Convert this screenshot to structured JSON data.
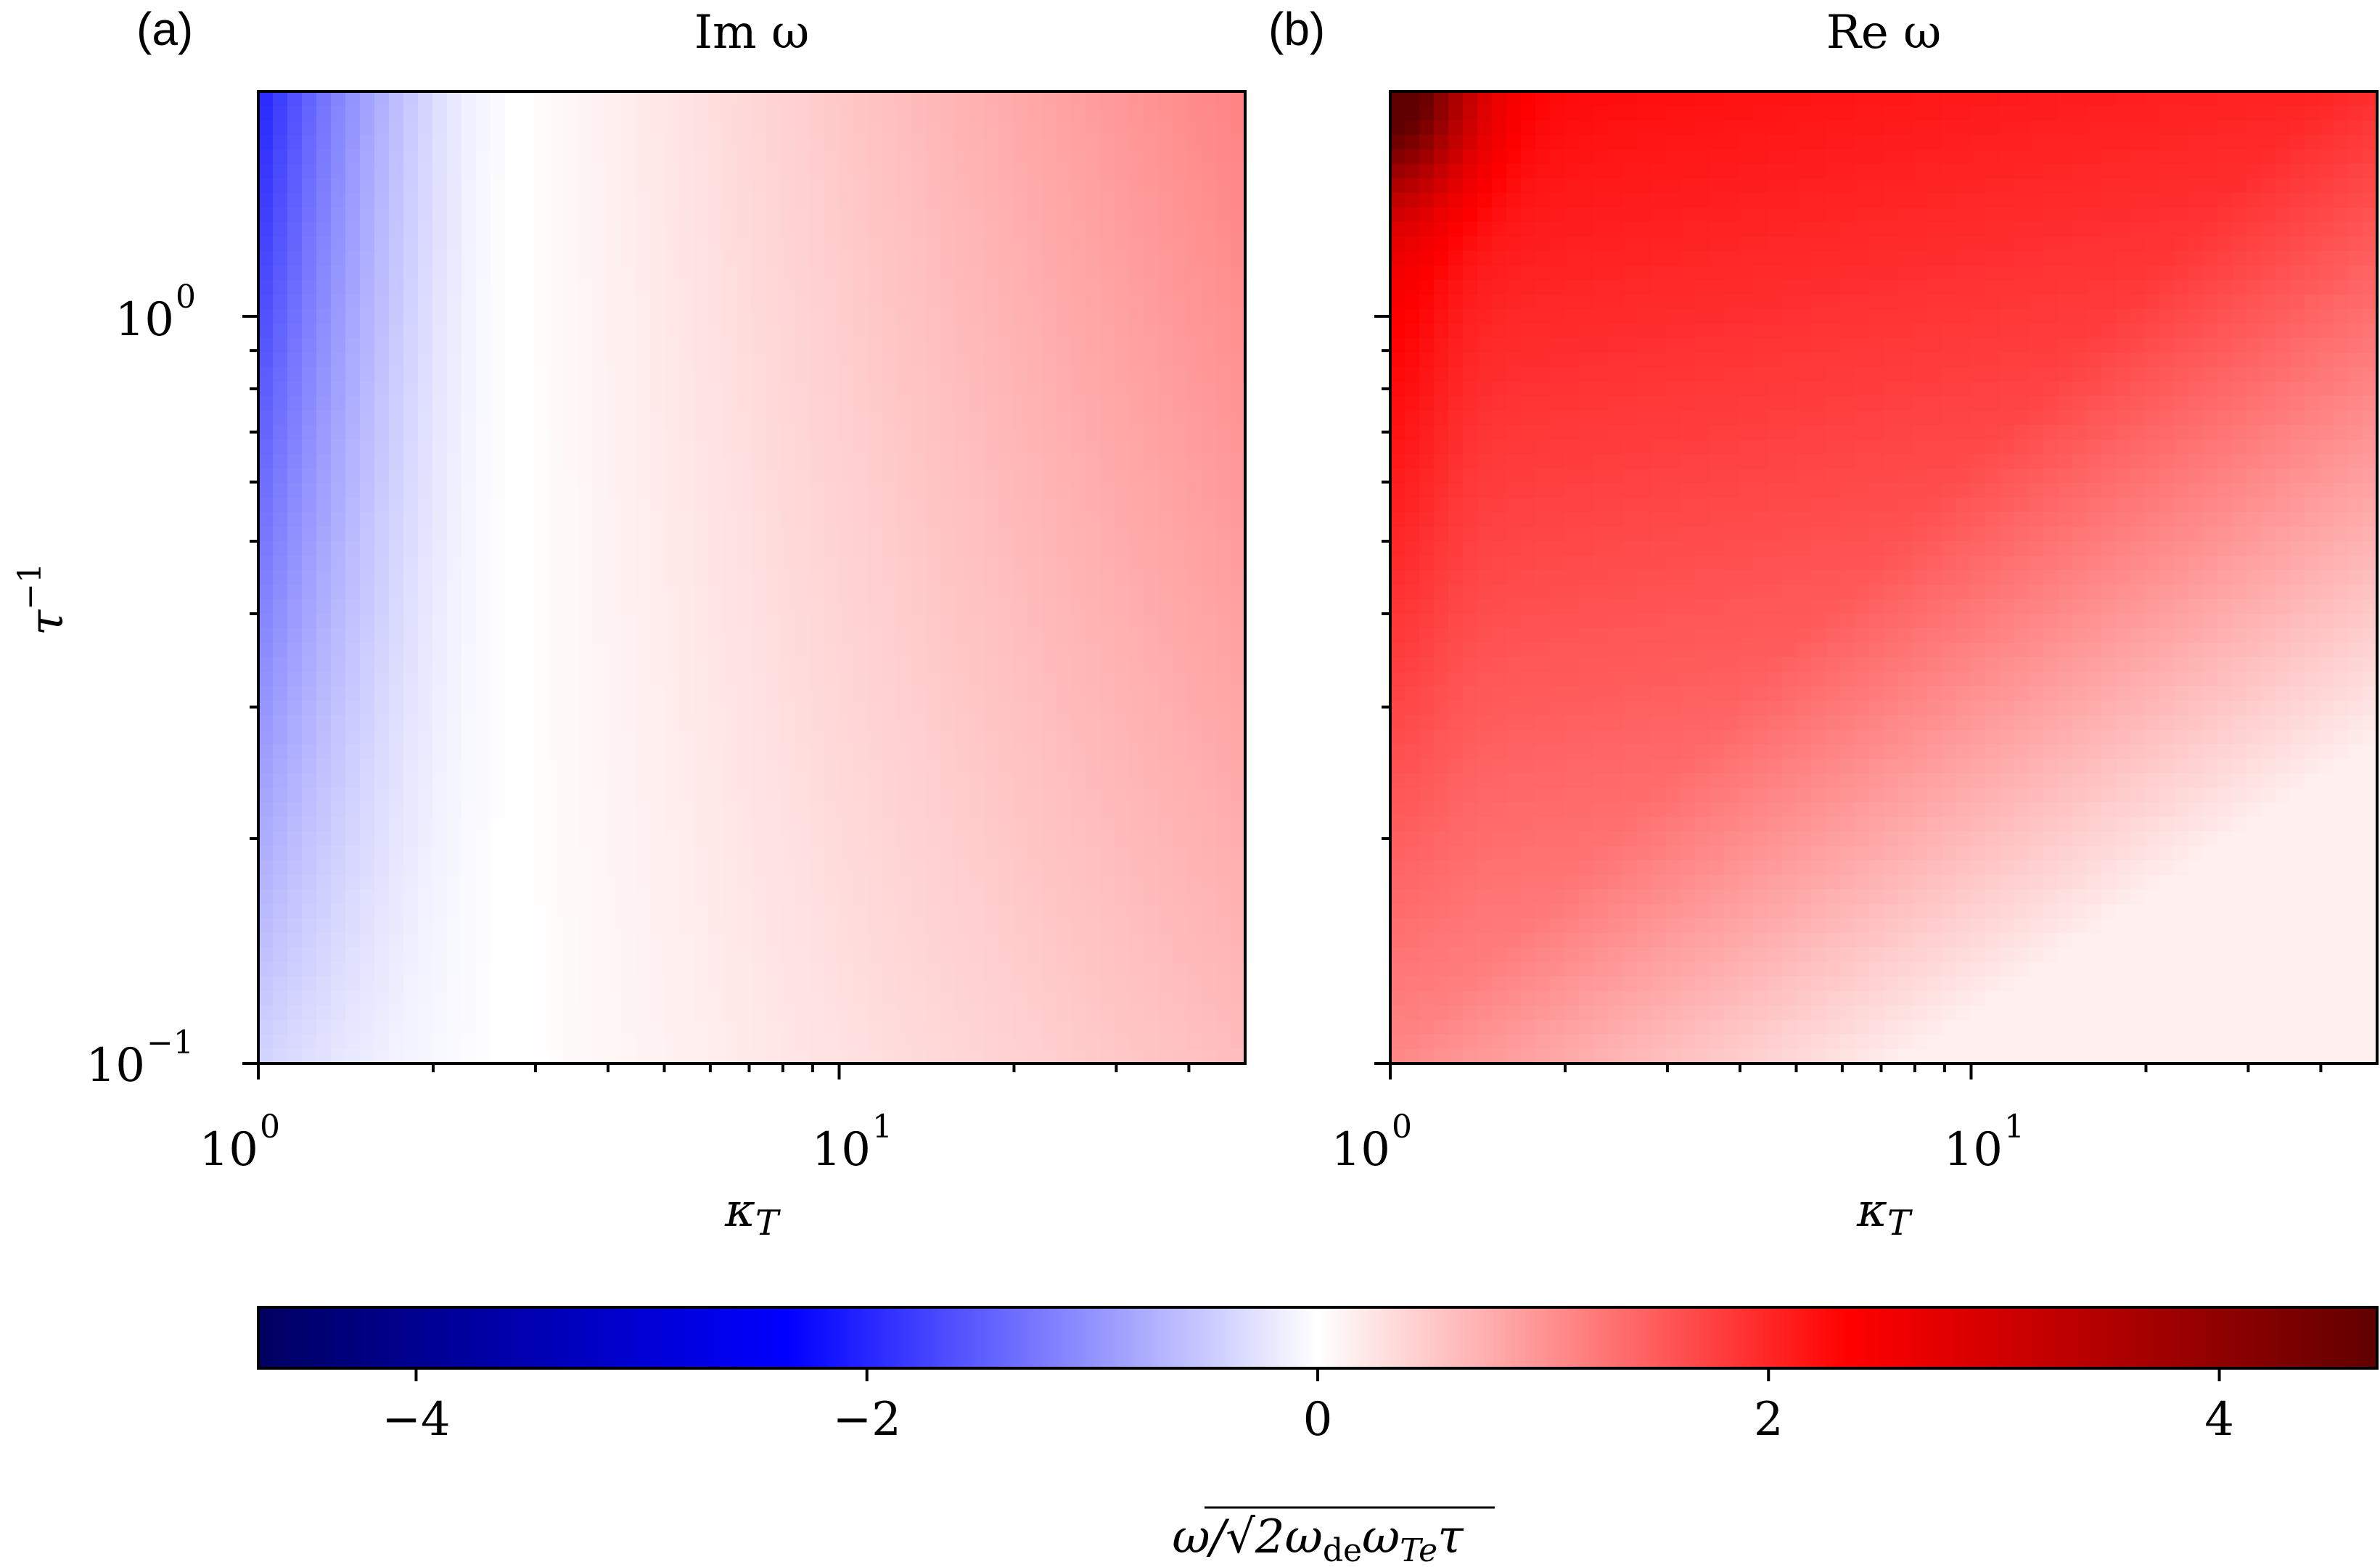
{
  "chart_data": [
    {
      "type": "heatmap",
      "panel_label": "(a)",
      "title": "Im ω",
      "xlabel": "κ_T",
      "ylabel": "τ^−1",
      "xscale": "log",
      "yscale": "log",
      "xlim": [
        1,
        50
      ],
      "ylim": [
        0.1,
        2
      ],
      "x_ticks": [
        {
          "value": 1,
          "base": "10",
          "exp": "0"
        },
        {
          "value": 10,
          "base": "10",
          "exp": "1"
        }
      ],
      "y_ticks": [
        {
          "value": 1,
          "base": "10",
          "exp": "0"
        },
        {
          "value": 0.1,
          "base": "10",
          "exp": "−1"
        }
      ],
      "field_samples": [
        {
          "kappa_T": 1.0,
          "tau_inv": 2.0,
          "value": -2.0
        },
        {
          "kappa_T": 1.0,
          "tau_inv": 0.1,
          "value": -0.4
        },
        {
          "kappa_T": 2.8,
          "tau_inv": 1.0,
          "value": 0.0
        },
        {
          "kappa_T": 50,
          "tau_inv": 2.0,
          "value": 1.15
        },
        {
          "kappa_T": 50,
          "tau_inv": 0.1,
          "value": 0.45
        }
      ]
    },
    {
      "type": "heatmap",
      "panel_label": "(b)",
      "title": "Re ω",
      "xlabel": "κ_T",
      "ylabel": "",
      "xscale": "log",
      "yscale": "log",
      "xlim": [
        1,
        50
      ],
      "ylim": [
        0.1,
        2
      ],
      "x_ticks": [
        {
          "value": 1,
          "base": "10",
          "exp": "0"
        },
        {
          "value": 10,
          "base": "10",
          "exp": "1"
        }
      ],
      "field_samples": [
        {
          "kappa_T": 1.0,
          "tau_inv": 2.0,
          "value": 4.7
        },
        {
          "kappa_T": 2.0,
          "tau_inv": 2.0,
          "value": 2.2
        },
        {
          "kappa_T": 1.0,
          "tau_inv": 0.1,
          "value": 1.2
        },
        {
          "kappa_T": 50,
          "tau_inv": 2.0,
          "value": 0.65
        },
        {
          "kappa_T": 50,
          "tau_inv": 0.1,
          "value": 0.25
        }
      ]
    }
  ],
  "colorbar": {
    "min": -4.7,
    "max": 4.7,
    "ticks": [
      {
        "value": -4,
        "label": "−4"
      },
      {
        "value": -2,
        "label": "−2"
      },
      {
        "value": 0,
        "label": "0"
      },
      {
        "value": 2,
        "label": "2"
      },
      {
        "value": 4,
        "label": "4"
      }
    ],
    "label_prefix": "ω/",
    "label_radicand": "2ω",
    "label_sub1": "de",
    "label_mid": "ω",
    "label_sub2": "Te",
    "label_end": "τ",
    "colormap": [
      "#000060",
      "#0000ff",
      "#ffffff",
      "#ff0000",
      "#600000"
    ]
  }
}
